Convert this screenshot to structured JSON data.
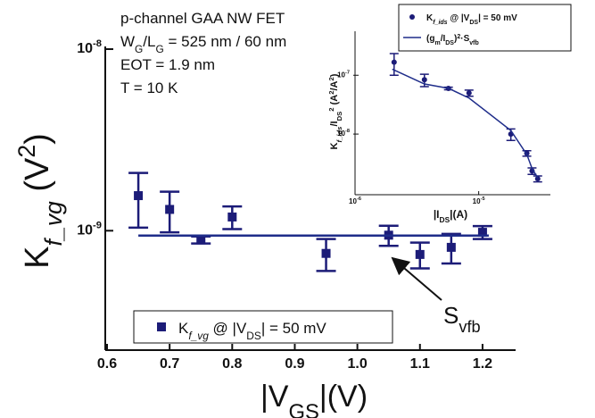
{
  "chart_data": [
    {
      "type": "scatter",
      "x_label": [
        "|V",
        "GS",
        "|(V)"
      ],
      "y_label": [
        "K",
        "f_vg",
        " (V",
        "2",
        ")"
      ],
      "annotations": [
        [
          "p-channel GAA NW FET"
        ],
        [
          "W",
          "G",
          "/L",
          "G",
          " = 525 nm / 60 nm"
        ],
        [
          "EOT = 1.9 nm"
        ],
        [
          "T = 10 K"
        ],
        [
          "S",
          "vfb"
        ]
      ],
      "xlim": [
        0.6,
        1.25
      ],
      "xticks": [
        0.6,
        0.7,
        0.8,
        0.9,
        {
          "value": 1,
          "label": "1.0"
        },
        1.1,
        1.2
      ],
      "ylim": [
        2.2e-10,
        1e-08
      ],
      "yticks": [
        {
          "value": 1e-08,
          "label": "10",
          "exponent": "-8"
        },
        {
          "value": 1e-09,
          "label": "10",
          "exponent": "-9"
        }
      ],
      "log_y": true,
      "series": [
        {
          "name": [
            "K",
            "f_vg",
            " @ |V",
            "DS",
            "| = 50 mV"
          ],
          "color": "#1c1c78",
          "x": [
            0.65,
            0.7,
            0.75,
            0.8,
            0.95,
            1.05,
            1.1,
            1.15,
            1.2
          ],
          "values": [
            1.56e-09,
            1.31e-09,
            8.9e-10,
            1.19e-09,
            7.5e-10,
            9.45e-10,
            7.4e-10,
            8.1e-10,
            9.8e-10
          ],
          "errors": [
            5.2e-10,
            3.3e-10,
            4e-11,
            1.7e-10,
            1.5e-10,
            1.2e-10,
            1.2e-10,
            1.5e-10,
            8e-11
          ]
        },
        {
          "color": "#1f2d8a",
          "x": [
            0.65,
            1.21
          ],
          "values": [
            9.4e-10,
            9.4e-10
          ]
        }
      ]
    },
    {
      "type": "scatter",
      "x_label": [
        "|I",
        "DS",
        "|(A)"
      ],
      "y_label": [
        "K",
        "f_ids",
        "/I",
        "DS",
        "2",
        " (A",
        "2",
        "/A",
        "2",
        ")"
      ],
      "xlim": [
        1e-06,
        3.8e-05
      ],
      "xticks": [
        {
          "value": 1e-06,
          "label": "10",
          "exponent": "-6"
        },
        {
          "value": 1e-05,
          "label": "10",
          "exponent": "-5"
        }
      ],
      "ylim": [
        9.3e-10,
        5.6e-07
      ],
      "yticks": [
        {
          "value": 1e-07,
          "label": "10",
          "exponent": "-7"
        },
        {
          "value": 1e-08,
          "label": "10",
          "exponent": "-8"
        }
      ],
      "log_x": true,
      "log_y": true,
      "series": [
        {
          "name": [
            "K",
            "f_ids",
            " @ |V",
            "DS",
            "| = 50 mV"
          ],
          "color": "#1c1c78",
          "x": [
            2.07e-06,
            3.64e-06,
            5.69e-06,
            8.35e-06,
            1.82e-05,
            2.45e-05,
            2.7e-05,
            3e-05
          ],
          "values": [
            1.67e-07,
            8.4e-08,
            5.97e-08,
            5e-08,
            1e-08,
            4.7e-09,
            2.36e-09,
            1.74e-09
          ],
          "errors": [
            6.7e-08,
            2e-08,
            3e-09,
            6e-09,
            2.2e-09,
            5e-10,
            3e-10,
            2e-10
          ]
        },
        {
          "name": [
            "(g",
            "m",
            "/I",
            "DS",
            ")",
            "2",
            "·S",
            "vfb"
          ],
          "color": "#1f2d8a",
          "x": [
            2e-06,
            3.64e-06,
            5.69e-06,
            8.35e-06,
            1.82e-05,
            2.45e-05,
            2.7e-05,
            3e-05
          ],
          "values": [
            1.27e-07,
            7.1e-08,
            6e-08,
            4.1e-08,
            1.15e-08,
            4.5e-09,
            2.6e-09,
            1.8e-09
          ]
        }
      ]
    }
  ]
}
